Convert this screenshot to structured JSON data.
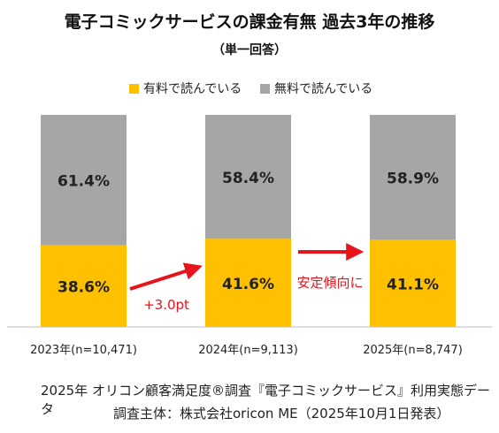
{
  "chart_data": {
    "type": "bar",
    "stacked": true,
    "title": "電子コミックサービスの課金有無 過去3年の推移",
    "subtitle": "（単一回答）",
    "categories": [
      "2023年(n=10,471)",
      "2024年(n=9,113)",
      "2025年(n=8,747)"
    ],
    "series": [
      {
        "name": "有料で読んでいる",
        "color": "#FFC000",
        "values": [
          38.6,
          41.6,
          41.1
        ],
        "labels": [
          "38.6%",
          "41.6%",
          "41.1%"
        ]
      },
      {
        "name": "無料で読んでいる",
        "color": "#A6A6A6",
        "values": [
          61.4,
          58.4,
          58.9
        ],
        "labels": [
          "61.4%",
          "58.4%",
          "58.9%"
        ]
      }
    ],
    "ylim": [
      0,
      100
    ],
    "grid": false,
    "legend_position": "top",
    "annotations": [
      {
        "text": "+3.0pt",
        "color": "#E8141B",
        "from": "2023年(n=10,471)",
        "to": "2024年(n=9,113)"
      },
      {
        "text": "安定傾向に",
        "color": "#E8141B",
        "from": "2024年(n=9,113)",
        "to": "2025年(n=8,747)"
      }
    ],
    "xlabel": "",
    "ylabel": ""
  },
  "footer": {
    "line1": "2025年 オリコン顧客満足度®調査『電子コミックサービス』利用実態データ",
    "line2": "調査主体：株式会社oricon ME（2025年10月1日発表）"
  }
}
